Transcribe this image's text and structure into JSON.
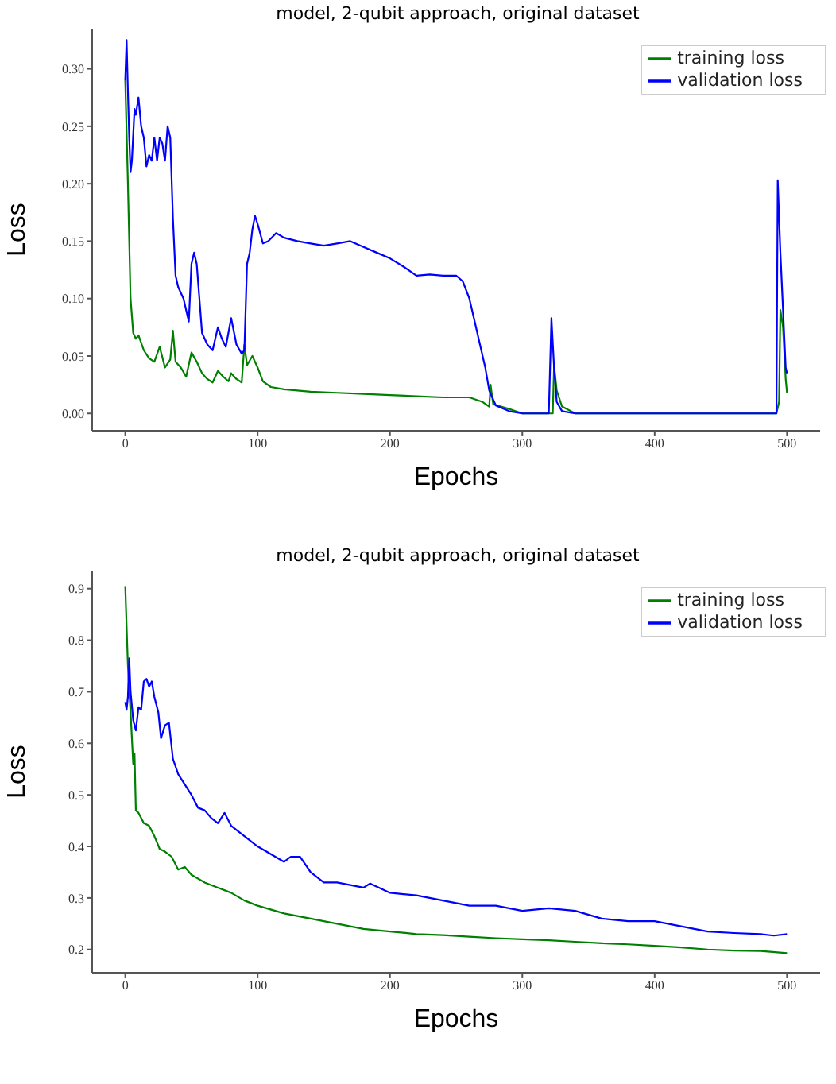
{
  "chart_data": [
    {
      "type": "line",
      "title": "model, 2-qubit approach, original dataset",
      "xlabel": "Epochs",
      "ylabel": "Loss",
      "xlim": [
        -25,
        525
      ],
      "xticks": [
        0,
        100,
        200,
        300,
        400,
        500
      ],
      "ylim": [
        -0.015,
        0.335
      ],
      "yticks": [
        {
          "value": 0,
          "label": "0.00"
        },
        {
          "value": 0.05,
          "label": "0.05"
        },
        {
          "value": 0.1,
          "label": "0.10"
        },
        {
          "value": 0.15,
          "label": "0.15"
        },
        {
          "value": 0.2,
          "label": "0.20"
        },
        {
          "value": 0.25,
          "label": "0.25"
        },
        {
          "value": 0.3,
          "label": "0.30"
        }
      ],
      "grid": false,
      "legend": "top right",
      "marker": "none",
      "line_style": "solid",
      "series": [
        {
          "name": "training loss",
          "color": "#008000",
          "x": [
            0,
            2,
            4,
            6,
            8,
            10,
            14,
            18,
            22,
            26,
            30,
            34,
            36,
            38,
            42,
            46,
            50,
            54,
            58,
            62,
            66,
            70,
            74,
            78,
            80,
            84,
            88,
            90,
            92,
            96,
            100,
            104,
            110,
            120,
            140,
            160,
            180,
            200,
            220,
            240,
            260,
            270,
            275,
            276,
            278,
            290,
            300,
            323,
            324,
            326,
            330,
            340,
            492,
            494,
            495,
            497,
            499,
            500
          ],
          "values": [
            0.29,
            0.2,
            0.1,
            0.07,
            0.065,
            0.068,
            0.055,
            0.048,
            0.045,
            0.058,
            0.04,
            0.047,
            0.072,
            0.045,
            0.04,
            0.032,
            0.053,
            0.045,
            0.035,
            0.03,
            0.027,
            0.037,
            0.032,
            0.028,
            0.035,
            0.03,
            0.027,
            0.06,
            0.042,
            0.05,
            0.04,
            0.028,
            0.023,
            0.021,
            0.019,
            0.018,
            0.017,
            0.016,
            0.015,
            0.014,
            0.014,
            0.01,
            0.006,
            0.025,
            0.008,
            0.004,
            0,
            0,
            0.042,
            0.02,
            0.006,
            0,
            0,
            0.01,
            0.09,
            0.075,
            0.03,
            0.018
          ]
        },
        {
          "name": "validation loss",
          "color": "#0000ff",
          "x": [
            0,
            1,
            2,
            3,
            4,
            5,
            7,
            8,
            10,
            12,
            14,
            16,
            18,
            20,
            22,
            24,
            26,
            28,
            30,
            32,
            34,
            36,
            38,
            40,
            42,
            44,
            46,
            48,
            50,
            52,
            54,
            56,
            58,
            62,
            66,
            70,
            73,
            76,
            80,
            84,
            88,
            90,
            92,
            94,
            96,
            98,
            100,
            104,
            108,
            114,
            120,
            130,
            140,
            150,
            160,
            170,
            180,
            190,
            200,
            210,
            220,
            230,
            240,
            250,
            255,
            260,
            265,
            268,
            272,
            275,
            280,
            290,
            300,
            320,
            322,
            324,
            326,
            330,
            340,
            490,
            492,
            493,
            495,
            497,
            499,
            500
          ],
          "values": [
            0.29,
            0.325,
            0.28,
            0.24,
            0.21,
            0.22,
            0.265,
            0.26,
            0.275,
            0.25,
            0.24,
            0.215,
            0.225,
            0.22,
            0.24,
            0.22,
            0.24,
            0.235,
            0.22,
            0.25,
            0.24,
            0.17,
            0.12,
            0.11,
            0.105,
            0.1,
            0.09,
            0.08,
            0.13,
            0.14,
            0.13,
            0.1,
            0.07,
            0.06,
            0.055,
            0.075,
            0.065,
            0.058,
            0.083,
            0.06,
            0.052,
            0.055,
            0.13,
            0.14,
            0.16,
            0.172,
            0.165,
            0.148,
            0.15,
            0.157,
            0.153,
            0.15,
            0.148,
            0.146,
            0.148,
            0.15,
            0.145,
            0.14,
            0.135,
            0.128,
            0.12,
            0.121,
            0.12,
            0.12,
            0.115,
            0.1,
            0.075,
            0.06,
            0.04,
            0.02,
            0.007,
            0.002,
            0,
            0,
            0.083,
            0.04,
            0.01,
            0.002,
            0,
            0,
            0,
            0.203,
            0.14,
            0.09,
            0.04,
            0.035
          ]
        }
      ]
    },
    {
      "type": "line",
      "title": "model, 2-qubit approach, original dataset",
      "xlabel": "Epochs",
      "ylabel": "Loss",
      "xlim": [
        -25,
        525
      ],
      "xticks": [
        0,
        100,
        200,
        300,
        400,
        500
      ],
      "ylim": [
        0.155,
        0.935
      ],
      "yticks": [
        0.2,
        0.3,
        0.4,
        0.5,
        0.6,
        0.7,
        0.8,
        0.9
      ],
      "grid": false,
      "legend": "top right",
      "marker": "none",
      "line_style": "solid",
      "series": [
        {
          "name": "training loss",
          "color": "#008000",
          "x": [
            0,
            2,
            4,
            6,
            7,
            8,
            10,
            14,
            18,
            22,
            26,
            30,
            35,
            40,
            45,
            50,
            60,
            70,
            80,
            90,
            100,
            120,
            140,
            160,
            180,
            200,
            220,
            240,
            260,
            280,
            300,
            320,
            340,
            360,
            380,
            400,
            420,
            440,
            460,
            480,
            500
          ],
          "values": [
            0.905,
            0.75,
            0.66,
            0.56,
            0.58,
            0.47,
            0.465,
            0.445,
            0.44,
            0.42,
            0.395,
            0.39,
            0.38,
            0.355,
            0.36,
            0.345,
            0.33,
            0.32,
            0.31,
            0.295,
            0.285,
            0.27,
            0.26,
            0.25,
            0.24,
            0.235,
            0.23,
            0.228,
            0.225,
            0.222,
            0.22,
            0.218,
            0.215,
            0.212,
            0.21,
            0.207,
            0.204,
            0.2,
            0.198,
            0.197,
            0.193
          ]
        },
        {
          "name": "validation loss",
          "color": "#0000ff",
          "x": [
            0,
            1,
            2,
            3,
            4,
            6,
            8,
            10,
            12,
            14,
            16,
            18,
            20,
            22,
            25,
            27,
            30,
            33,
            36,
            40,
            45,
            50,
            55,
            60,
            65,
            70,
            75,
            80,
            90,
            100,
            110,
            120,
            125,
            132,
            140,
            150,
            160,
            170,
            180,
            185,
            200,
            220,
            240,
            260,
            280,
            300,
            320,
            340,
            360,
            380,
            400,
            420,
            440,
            460,
            480,
            490,
            500
          ],
          "values": [
            0.68,
            0.665,
            0.69,
            0.765,
            0.7,
            0.645,
            0.625,
            0.67,
            0.665,
            0.72,
            0.725,
            0.71,
            0.72,
            0.69,
            0.66,
            0.61,
            0.635,
            0.64,
            0.57,
            0.54,
            0.52,
            0.5,
            0.475,
            0.47,
            0.455,
            0.445,
            0.465,
            0.44,
            0.42,
            0.4,
            0.385,
            0.37,
            0.38,
            0.38,
            0.35,
            0.33,
            0.33,
            0.325,
            0.32,
            0.328,
            0.31,
            0.305,
            0.295,
            0.285,
            0.285,
            0.275,
            0.28,
            0.275,
            0.26,
            0.255,
            0.255,
            0.245,
            0.235,
            0.232,
            0.23,
            0.227,
            0.23
          ]
        }
      ]
    }
  ]
}
